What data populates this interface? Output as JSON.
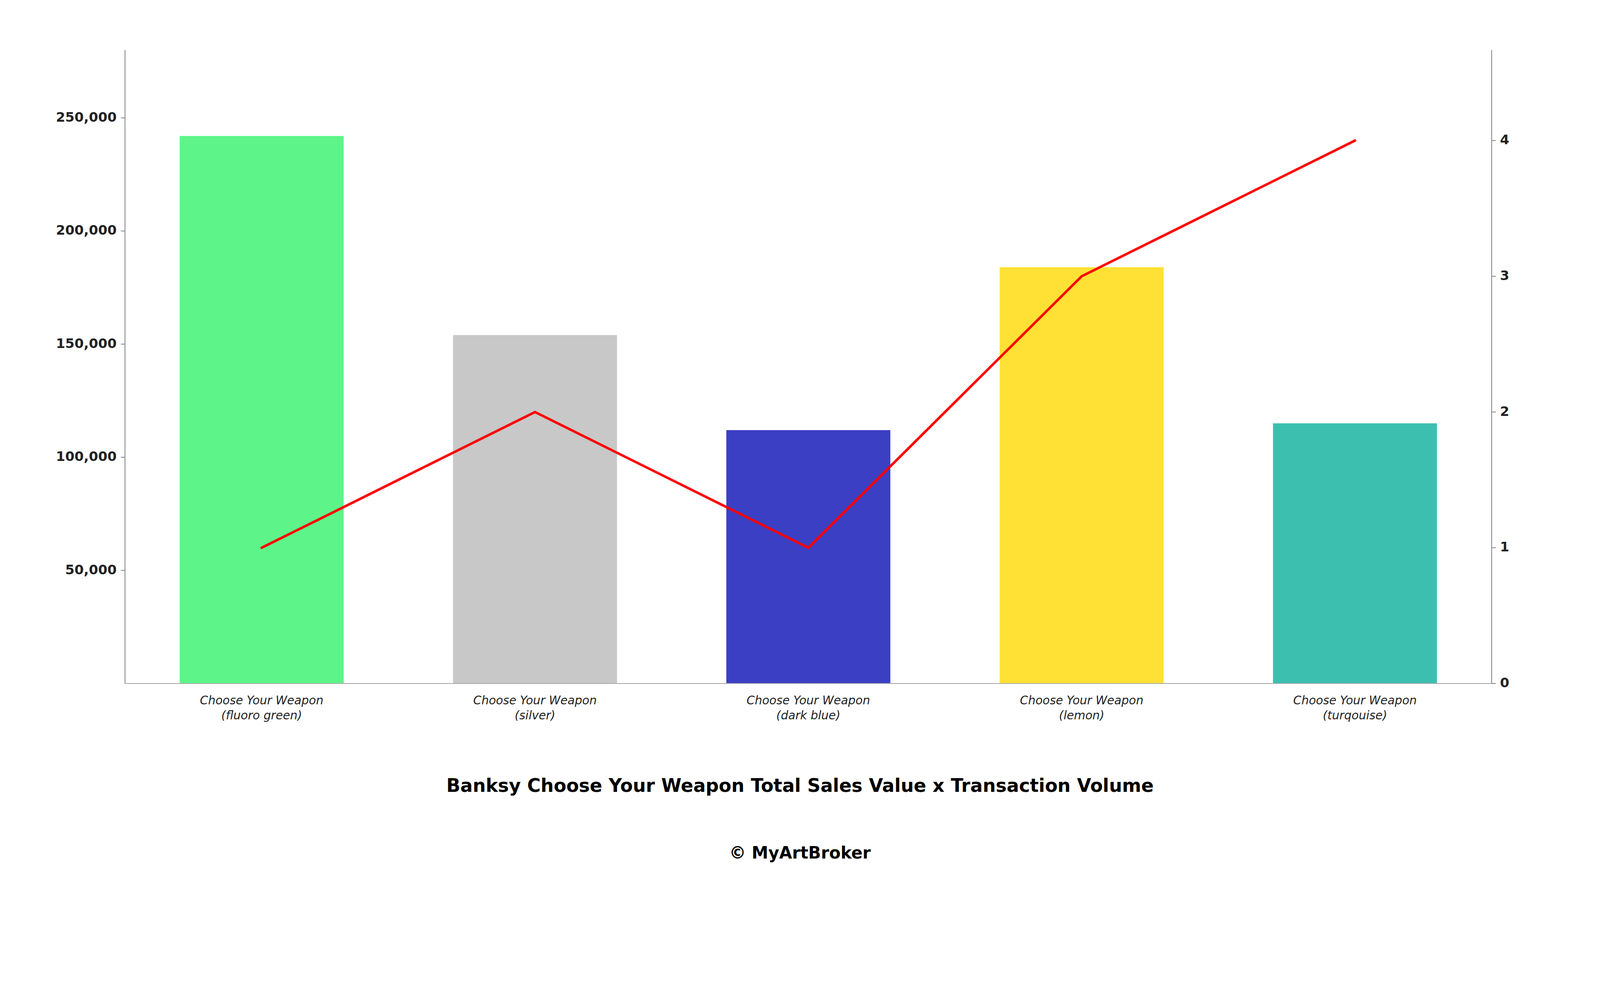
{
  "chart_data": {
    "type": "bar",
    "title": "Banksy Choose Your Weapon Total Sales Value x Transaction Volume",
    "subtitle": "© MyArtBroker",
    "categories": [
      "Choose Your Weapon\n(fluoro green)",
      "Choose Your Weapon\n(silver)",
      "Choose Your Weapon\n(dark blue)",
      "Choose Your Weapon\n(lemon)",
      "Choose Your Weapon\n(turqouise)"
    ],
    "series": [
      {
        "type": "bar",
        "colors": [
          "#5DF589",
          "#C8C8C8",
          "#3B3FC4",
          "#FFE135",
          "#3DBFB0"
        ],
        "values": [
          242000,
          154000,
          112000,
          184000,
          115000
        ]
      },
      {
        "type": "line",
        "color": "#FF0000",
        "axis": "y2",
        "values": [
          1,
          2,
          1,
          3,
          4
        ]
      }
    ],
    "ylim": [
      0,
      280000
    ],
    "yticks": [
      {
        "value": 50000,
        "label": "50,000"
      },
      {
        "value": 100000,
        "label": "100,000"
      },
      {
        "value": 150000,
        "label": "150,000"
      },
      {
        "value": 200000,
        "label": "200,000"
      },
      {
        "value": 250000,
        "label": "250,000"
      }
    ],
    "y2lim": [
      0,
      4.667
    ],
    "y2ticks": [
      0,
      1,
      2,
      3,
      4
    ],
    "grid": false
  }
}
